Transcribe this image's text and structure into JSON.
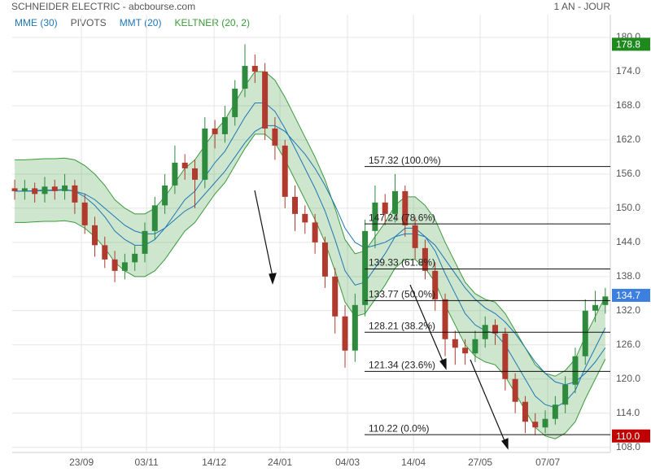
{
  "header": {
    "title": "SCHNEIDER ELECTRIC - abcbourse.com",
    "period": "1 AN - JOUR"
  },
  "chart_data": {
    "type": "candlestick",
    "legend": [
      {
        "name": "MME (30)",
        "color": "#1f77b4"
      },
      {
        "name": "PIVOTS",
        "color": "#555555"
      },
      {
        "name": "MMT (20)",
        "color": "#1f77b4"
      },
      {
        "name": "KELTNER (20, 2)",
        "color": "#3a9a3a"
      }
    ],
    "up_color": "#2e8b3e",
    "down_color": "#b03a2e",
    "open": [
      153.5,
      153,
      153.5,
      152.5,
      153.8,
      153,
      154,
      151,
      147,
      143.5,
      141,
      139,
      140.5,
      142,
      146,
      150.5,
      154,
      158,
      157,
      155,
      164,
      163,
      166,
      171,
      175,
      174,
      164,
      161,
      152,
      149,
      147.5,
      144,
      138,
      131,
      125,
      133,
      146,
      151,
      149,
      153,
      147,
      143,
      139,
      134,
      127,
      125.5,
      124.5,
      127,
      129.5,
      128,
      120,
      116,
      112.5,
      111.5,
      113,
      115.5,
      119,
      124,
      132,
      133
    ],
    "high": [
      155,
      155,
      154.5,
      155.5,
      155,
      156,
      155,
      152.5,
      148.5,
      145,
      142.5,
      142,
      143.5,
      147.5,
      152,
      156,
      161,
      159.5,
      158.5,
      166,
      165.5,
      168,
      172.5,
      178.8,
      177,
      175.5,
      166,
      162,
      154,
      150.5,
      149,
      145,
      139.5,
      133,
      135,
      148,
      154,
      152.5,
      156,
      154,
      148.5,
      144.5,
      140.5,
      135,
      128.5,
      127,
      128.5,
      131,
      130.5,
      129,
      121,
      117,
      114,
      114.5,
      117,
      120.5,
      125.5,
      134,
      135.5,
      136
    ],
    "low": [
      151.5,
      151.5,
      151,
      151,
      151.5,
      151.5,
      149,
      145.5,
      141.5,
      139.5,
      137,
      137.5,
      139,
      140.5,
      144.5,
      149,
      152.5,
      155,
      150,
      153.5,
      160.5,
      161.5,
      164.5,
      169.5,
      172,
      162,
      158.5,
      150,
      146,
      145.5,
      142,
      136,
      128,
      122,
      123,
      131,
      143,
      147,
      147.5,
      145,
      141,
      137.5,
      132,
      124,
      122.5,
      122.5,
      123,
      125.5,
      126,
      118,
      114,
      110.5,
      110.2,
      110.5,
      112,
      114,
      117.5,
      122.5,
      130,
      131.5
    ],
    "close": [
      153,
      153.5,
      152.5,
      153.8,
      153,
      154,
      151,
      147,
      143.5,
      141,
      139,
      140.5,
      142,
      146,
      150.5,
      154,
      158,
      157,
      155,
      164,
      163,
      166,
      171,
      175,
      174,
      164,
      161,
      152,
      149,
      147.5,
      144,
      138,
      131,
      125,
      133,
      146,
      151,
      149,
      153,
      147,
      143,
      139,
      134,
      127,
      125.5,
      124.5,
      127,
      129.5,
      128,
      120,
      116,
      112.5,
      111.5,
      113,
      115.5,
      119,
      124,
      132,
      133,
      134.5
    ],
    "mme": [
      153,
      153,
      153,
      153.1,
      153.1,
      153.2,
      153,
      152.5,
      151.5,
      150,
      148.5,
      147,
      146,
      145.5,
      145.5,
      146.5,
      148,
      149.5,
      150.5,
      152.5,
      154.5,
      156.5,
      159,
      161.5,
      163.5,
      164.5,
      164.5,
      163.5,
      161.5,
      159.5,
      157,
      154,
      150.5,
      146.5,
      144,
      143,
      143.5,
      144,
      145,
      145.5,
      145.5,
      145,
      143.5,
      141,
      138.5,
      136,
      134,
      132.5,
      131.5,
      130,
      128,
      125.5,
      123,
      121,
      119.5,
      119,
      119.5,
      121,
      123,
      125.5
    ],
    "mmt": [
      153,
      153,
      153.1,
      153.2,
      153.2,
      153.3,
      153,
      152,
      150.5,
      148.5,
      146,
      144.5,
      143.5,
      143.5,
      144.5,
      146.5,
      149,
      151.5,
      153,
      155.5,
      158,
      160,
      163,
      166,
      168.5,
      168.5,
      167,
      164,
      160.5,
      157,
      153.5,
      149.5,
      144.5,
      139,
      136.5,
      137,
      139.5,
      142,
      145,
      146.5,
      146.5,
      145,
      142.5,
      138.5,
      135,
      131.5,
      129.5,
      128.5,
      128,
      126,
      123,
      120,
      117,
      115.5,
      115,
      116,
      118,
      122,
      125.5,
      129
    ],
    "keltner_upper": [
      158.5,
      158.5,
      158.6,
      158.7,
      158.7,
      158.8,
      158.5,
      157.5,
      156,
      154,
      151.5,
      150,
      149,
      149,
      150,
      152,
      154.5,
      157,
      158.5,
      161,
      163.5,
      165.5,
      168.5,
      171.5,
      174,
      174,
      172.5,
      169.5,
      166,
      162.5,
      159,
      155,
      150,
      144.5,
      142,
      142.5,
      145,
      147.5,
      150.5,
      152,
      152,
      150.5,
      148,
      144,
      140.5,
      137,
      135,
      134,
      133.5,
      131.5,
      128.5,
      125.5,
      122.5,
      121,
      120.5,
      121.5,
      123.5,
      127.5,
      131,
      134.5
    ],
    "keltner_lower": [
      147.5,
      147.5,
      147.6,
      147.7,
      147.7,
      147.8,
      147.5,
      146.5,
      145,
      143,
      140.5,
      139,
      138,
      138,
      139,
      141,
      143.5,
      146,
      147.5,
      150,
      152.5,
      154.5,
      157.5,
      160.5,
      163,
      163,
      161.5,
      158.5,
      155,
      151.5,
      148,
      144,
      139,
      133.5,
      131,
      131.5,
      134,
      136.5,
      139.5,
      141,
      141,
      139.5,
      137,
      133,
      129.5,
      126,
      124,
      123,
      122.5,
      120.5,
      117.5,
      114.5,
      111.5,
      110,
      109.5,
      110.5,
      112.5,
      116.5,
      120,
      123.5
    ],
    "fibonacci": [
      {
        "value": 157.32,
        "label": "157.32  (100.0%)"
      },
      {
        "value": 147.24,
        "label": "147.24  (78.6%)"
      },
      {
        "value": 139.33,
        "label": "139.33  (61.8%)"
      },
      {
        "value": 133.77,
        "label": "133.77  (50.0%)"
      },
      {
        "value": 128.21,
        "label": "128.21  (38.2%)"
      },
      {
        "value": 121.34,
        "label": "121.34  (23.6%)"
      },
      {
        "value": 110.22,
        "label": "110.22  (0.0%)"
      }
    ],
    "badges": [
      {
        "value": 178.8,
        "color": "#1e8a1e"
      },
      {
        "value": 134.7,
        "color": "#3d7fe0"
      },
      {
        "value": 110,
        "label": "110.0",
        "color": "#c00000"
      }
    ],
    "xlim": [
      -0.25,
      59.5
    ],
    "ylim": [
      107.1,
      184
    ],
    "xticks": [
      {
        "value": 6.67,
        "label": "23/09"
      },
      {
        "value": 13.17,
        "label": "03/11"
      },
      {
        "value": 19.92,
        "label": "14/12"
      },
      {
        "value": 26.5,
        "label": "24/01"
      },
      {
        "value": 33.25,
        "label": "04/03"
      },
      {
        "value": 39.84,
        "label": "14/04"
      },
      {
        "value": 46.5,
        "label": "27/05"
      },
      {
        "value": 53.25,
        "label": "07/07"
      }
    ],
    "yticks": [
      {
        "value": 108,
        "label": "108.0"
      },
      {
        "value": 114,
        "label": "114.0"
      },
      {
        "value": 120,
        "label": "120.0"
      },
      {
        "value": 126,
        "label": "126.0"
      },
      {
        "value": 132,
        "label": "132.0"
      },
      {
        "value": 138,
        "label": "138.0"
      },
      {
        "value": 144,
        "label": "144.0"
      },
      {
        "value": 150,
        "label": "150.0"
      },
      {
        "value": 156,
        "label": "156.0"
      },
      {
        "value": 162,
        "label": "162.0"
      },
      {
        "value": 168,
        "label": "168.0"
      },
      {
        "value": 174,
        "label": "174.0"
      },
      {
        "value": 180,
        "label": "180.0"
      }
    ],
    "grid": true
  }
}
